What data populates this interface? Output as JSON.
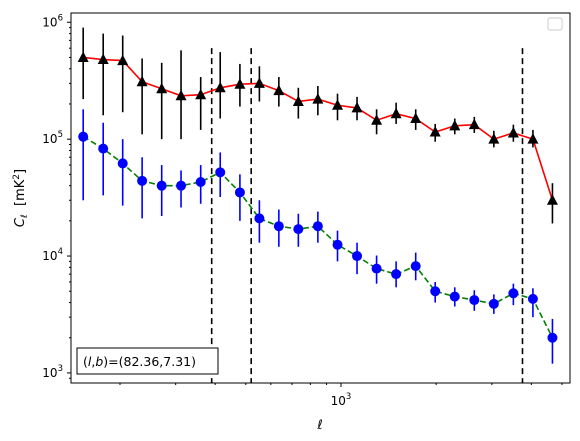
{
  "chart_data": {
    "type": "scatter",
    "title": "",
    "xlabel": "ℓ",
    "ylabel": "C",
    "ylabel_sub": "ℓ",
    "ylabel_unit": "[mK",
    "ylabel_unit_sup": "2",
    "ylabel_unit_close": "]",
    "x_scale": "log",
    "y_scale": "log",
    "xlim": [
      140,
      5300
    ],
    "ylim": [
      820,
      1200000
    ],
    "x_major_ticks": [
      {
        "value": 1000,
        "base": "10",
        "exp": "3"
      }
    ],
    "y_major_ticks": [
      {
        "value": 1000,
        "base": "10",
        "exp": "3"
      },
      {
        "value": 10000,
        "base": "10",
        "exp": "4"
      },
      {
        "value": 100000,
        "base": "10",
        "exp": "5"
      },
      {
        "value": 1000000,
        "base": "10",
        "exp": "6"
      }
    ],
    "grid": false,
    "legend": {
      "placement": "upper-right",
      "entries": []
    },
    "annotation": {
      "prefix": "(",
      "l": "l",
      "sep": ",",
      "b": "b",
      "suffix": ")=(82.36,7.31)"
    },
    "vlines": [
      390,
      520,
      3750
    ],
    "series": [
      {
        "marker": "triangle",
        "marker_color": "#000000",
        "line_color": "#ff0000",
        "line_style": "solid",
        "x": [
          153,
          177,
          204,
          235,
          271,
          312,
          360,
          415,
          479,
          552,
          636,
          733,
          845,
          975,
          1124,
          1296,
          1494,
          1723,
          1986,
          2290,
          2640,
          3044,
          3509,
          4046,
          4664
        ],
        "y": [
          500000,
          480000,
          470000,
          310000,
          270000,
          235000,
          240000,
          275000,
          295000,
          300000,
          260000,
          210000,
          220000,
          195000,
          185000,
          145000,
          165000,
          150000,
          115000,
          130000,
          133000,
          100000,
          113000,
          100000,
          30000
        ],
        "yerr_low": [
          280000,
          320000,
          300000,
          200000,
          170000,
          135000,
          120000,
          125000,
          105000,
          90000,
          70000,
          60000,
          60000,
          50000,
          40000,
          35000,
          30000,
          30000,
          20000,
          20000,
          20000,
          15000,
          18000,
          15000,
          11000
        ],
        "yerr_high": [
          400000,
          320000,
          300000,
          180000,
          180000,
          340000,
          100000,
          280000,
          145000,
          120000,
          80000,
          65000,
          65000,
          50000,
          45000,
          35000,
          40000,
          30000,
          20000,
          20000,
          22000,
          18000,
          20000,
          20000,
          12000
        ]
      },
      {
        "marker": "circle",
        "marker_color": "#0000ff",
        "line_color": "#008000",
        "line_style": "dashed",
        "x": [
          153,
          177,
          204,
          235,
          271,
          312,
          360,
          415,
          479,
          552,
          636,
          733,
          845,
          975,
          1124,
          1296,
          1494,
          1723,
          1986,
          2290,
          2640,
          3044,
          3509,
          4046,
          4664
        ],
        "y": [
          105000,
          83000,
          62000,
          44000,
          40000,
          40000,
          43000,
          52000,
          35000,
          21000,
          18000,
          17000,
          18000,
          12500,
          10000,
          7800,
          7000,
          8200,
          5000,
          4500,
          4200,
          3900,
          4800,
          4300,
          2000
        ],
        "yerr_low": [
          75000,
          50000,
          35000,
          23000,
          18000,
          14000,
          15000,
          20000,
          15000,
          8000,
          6000,
          5000,
          5000,
          3500,
          3000,
          2000,
          1600,
          2000,
          1000,
          800,
          800,
          700,
          1000,
          1300,
          800
        ],
        "yerr_high": [
          75000,
          55000,
          38000,
          26000,
          20000,
          14000,
          17000,
          25000,
          15000,
          9000,
          7000,
          6000,
          6000,
          4000,
          3000,
          2300,
          2000,
          2500,
          1000,
          900,
          900,
          800,
          1000,
          1000,
          900
        ]
      }
    ]
  }
}
